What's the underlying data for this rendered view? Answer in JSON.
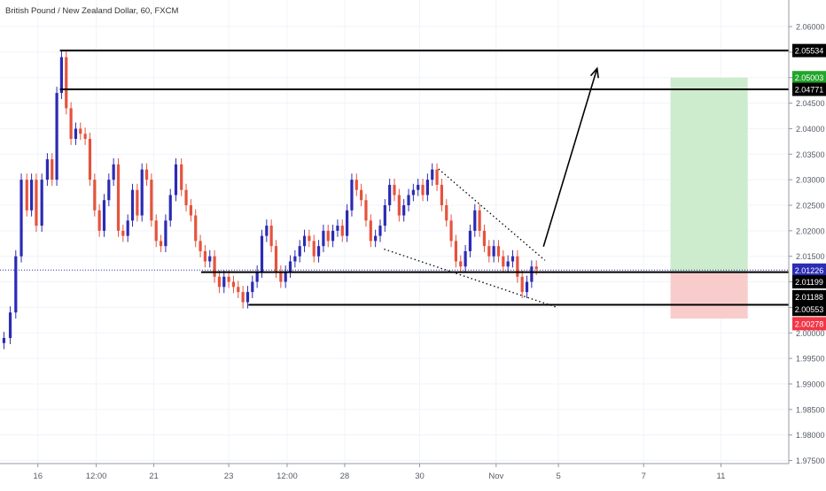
{
  "header": {
    "title": "British Pound / New Zealand Dollar, 60, FXCM"
  },
  "chart_data": {
    "type": "candlestick",
    "title": "British Pound / New Zealand Dollar, 60, FXCM",
    "xlabel": "",
    "ylabel": "",
    "ylim": [
      1.9744,
      2.0652
    ],
    "x_range": [
      0,
      100
    ],
    "y_ticks": [
      "2.06000",
      "2.05500",
      "2.05000",
      "2.04500",
      "2.04000",
      "2.03500",
      "2.03000",
      "2.02500",
      "2.02000",
      "2.01500",
      "2.01000",
      "2.00500",
      "2.00000",
      "1.99500",
      "1.99000",
      "1.98500",
      "1.98000",
      "1.97500"
    ],
    "x_ticks": [
      {
        "label": "16",
        "x": 4.8
      },
      {
        "label": "12:00",
        "x": 12.2
      },
      {
        "label": "21",
        "x": 19.5
      },
      {
        "label": "23",
        "x": 29.0
      },
      {
        "label": "12:00",
        "x": 36.4
      },
      {
        "label": "28",
        "x": 43.7
      },
      {
        "label": "30",
        "x": 53.2
      },
      {
        "label": "Nov",
        "x": 62.9
      },
      {
        "label": "5",
        "x": 70.8
      },
      {
        "label": "7",
        "x": 81.6
      },
      {
        "label": "11",
        "x": 91.4
      }
    ],
    "horizontal_levels": [
      {
        "name": "resistance-high",
        "y": 2.0553,
        "x_start": 7.6,
        "x_end": 100,
        "color": "#000000"
      },
      {
        "name": "resistance-2",
        "y": 2.0477,
        "x_start": 7.6,
        "x_end": 100,
        "color": "#000000"
      },
      {
        "name": "support-upper",
        "y": 2.0119,
        "x_start": 25.5,
        "x_end": 100,
        "color": "#000000"
      },
      {
        "name": "support-lower",
        "y": 2.0055,
        "x_start": 31.5,
        "x_end": 100,
        "color": "#000000"
      }
    ],
    "current_price": {
      "y": 2.0123,
      "color": "#2b2bb5"
    },
    "price_labels": [
      {
        "text": "2.05534",
        "y": 2.0553,
        "bg": "#000000",
        "fg": "#ffffff"
      },
      {
        "text": "2.05003",
        "y": 2.05,
        "bg": "#21a52a",
        "fg": "#ffffff"
      },
      {
        "text": "2.04771",
        "y": 2.0477,
        "bg": "#000000",
        "fg": "#ffffff"
      },
      {
        "text": "2.01226",
        "y": 2.0123,
        "bg": "#2b2bb5",
        "fg": "#ffffff"
      },
      {
        "text": "2.01199",
        "y": 2.01,
        "bg": "#000000",
        "fg": "#ffffff"
      },
      {
        "text": "2.01188",
        "y": 2.0071,
        "bg": "#000000",
        "fg": "#ffffff"
      },
      {
        "text": "2.00553",
        "y": 2.0046,
        "bg": "#000000",
        "fg": "#ffffff"
      },
      {
        "text": "2.00278",
        "y": 2.0018,
        "bg": "#f23645",
        "fg": "#ffffff"
      }
    ],
    "long_position": {
      "x_start": 85.0,
      "x_end": 94.8,
      "entry": 2.0119,
      "target": 2.05,
      "stop": 2.0028,
      "profit_color": "#cdebcd",
      "loss_color": "#f9cccc"
    },
    "wedge_lines": [
      {
        "x1": 55.6,
        "y1": 2.0321,
        "x2": 69.1,
        "y2": 2.0142
      },
      {
        "x1": 48.7,
        "y1": 2.0164,
        "x2": 70.6,
        "y2": 2.005
      }
    ],
    "projection_arrow": {
      "x1": 68.9,
      "y1": 2.0169,
      "x2": 75.7,
      "y2": 2.0518
    },
    "candles": {
      "bull_color": "#2b2bb5",
      "bear_color": "#e5533d",
      "points": [
        [
          0.5,
          1.999
        ],
        [
          1.3,
          2.004
        ],
        [
          2.0,
          2.015
        ],
        [
          2.7,
          2.03
        ],
        [
          3.4,
          2.024
        ],
        [
          4.0,
          2.03
        ],
        [
          4.6,
          2.021
        ],
        [
          5.3,
          2.03
        ],
        [
          6.0,
          2.034
        ],
        [
          6.6,
          2.03
        ],
        [
          7.2,
          2.047
        ],
        [
          7.8,
          2.054
        ],
        [
          8.4,
          2.044
        ],
        [
          9.0,
          2.038
        ],
        [
          9.6,
          2.04
        ],
        [
          10.2,
          2.039
        ],
        [
          10.8,
          2.038
        ],
        [
          11.4,
          2.03
        ],
        [
          12.0,
          2.024
        ],
        [
          12.6,
          2.02
        ],
        [
          13.2,
          2.026
        ],
        [
          13.8,
          2.03
        ],
        [
          14.4,
          2.033
        ],
        [
          15.0,
          2.02
        ],
        [
          15.6,
          2.019
        ],
        [
          16.2,
          2.022
        ],
        [
          16.8,
          2.028
        ],
        [
          17.4,
          2.023
        ],
        [
          18.0,
          2.032
        ],
        [
          18.6,
          2.03
        ],
        [
          19.2,
          2.022
        ],
        [
          19.8,
          2.018
        ],
        [
          20.4,
          2.017
        ],
        [
          21.0,
          2.022
        ],
        [
          21.6,
          2.027
        ],
        [
          22.3,
          2.033
        ],
        [
          23.0,
          2.028
        ],
        [
          23.6,
          2.025
        ],
        [
          24.2,
          2.023
        ],
        [
          24.8,
          2.018
        ],
        [
          25.4,
          2.016
        ],
        [
          26.0,
          2.014
        ],
        [
          26.6,
          2.015
        ],
        [
          27.2,
          2.011
        ],
        [
          27.8,
          2.009
        ],
        [
          28.4,
          2.011
        ],
        [
          29.0,
          2.01
        ],
        [
          29.6,
          2.009
        ],
        [
          30.2,
          2.008
        ],
        [
          30.8,
          2.006
        ],
        [
          31.4,
          2.008
        ],
        [
          32.0,
          2.01
        ],
        [
          32.6,
          2.012
        ],
        [
          33.2,
          2.019
        ],
        [
          33.8,
          2.021
        ],
        [
          34.4,
          2.017
        ],
        [
          35.0,
          2.012
        ],
        [
          35.6,
          2.01
        ],
        [
          36.2,
          2.012
        ],
        [
          36.8,
          2.014
        ],
        [
          37.4,
          2.015
        ],
        [
          38.0,
          2.017
        ],
        [
          38.6,
          2.019
        ],
        [
          39.2,
          2.018
        ],
        [
          39.8,
          2.015
        ],
        [
          40.4,
          2.017
        ],
        [
          41.0,
          2.02
        ],
        [
          41.6,
          2.018
        ],
        [
          42.2,
          2.02
        ],
        [
          42.8,
          2.021
        ],
        [
          43.4,
          2.019
        ],
        [
          44.0,
          2.024
        ],
        [
          44.6,
          2.03
        ],
        [
          45.2,
          2.028
        ],
        [
          45.8,
          2.026
        ],
        [
          46.4,
          2.022
        ],
        [
          47.0,
          2.018
        ],
        [
          47.6,
          2.019
        ],
        [
          48.2,
          2.021
        ],
        [
          48.8,
          2.025
        ],
        [
          49.4,
          2.029
        ],
        [
          50.0,
          2.027
        ],
        [
          50.6,
          2.023
        ],
        [
          51.2,
          2.025
        ],
        [
          51.8,
          2.027
        ],
        [
          52.4,
          2.028
        ],
        [
          53.0,
          2.029
        ],
        [
          53.6,
          2.027
        ],
        [
          54.2,
          2.03
        ],
        [
          54.8,
          2.032
        ],
        [
          55.4,
          2.029
        ],
        [
          56.0,
          2.025
        ],
        [
          56.6,
          2.022
        ],
        [
          57.2,
          2.018
        ],
        [
          57.8,
          2.014
        ],
        [
          58.4,
          2.013
        ],
        [
          59.0,
          2.016
        ],
        [
          59.6,
          2.02
        ],
        [
          60.2,
          2.024
        ],
        [
          60.8,
          2.02
        ],
        [
          61.4,
          2.017
        ],
        [
          62.0,
          2.015
        ],
        [
          62.6,
          2.017
        ],
        [
          63.2,
          2.015
        ],
        [
          63.8,
          2.013
        ],
        [
          64.4,
          2.014
        ],
        [
          65.0,
          2.015
        ],
        [
          65.6,
          2.011
        ],
        [
          66.2,
          2.008
        ],
        [
          66.8,
          2.01
        ],
        [
          67.4,
          2.013
        ],
        [
          68.0,
          2.0125
        ]
      ]
    }
  }
}
